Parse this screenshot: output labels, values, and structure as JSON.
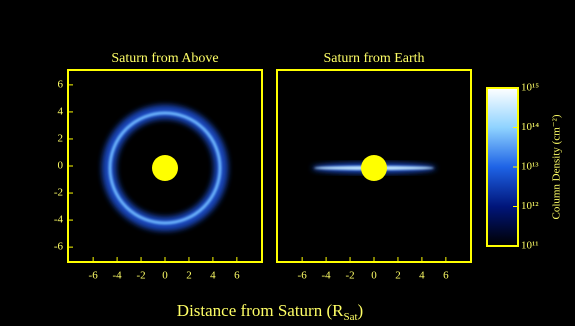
{
  "chart_data": [
    {
      "type": "image",
      "title": "Saturn from Above",
      "xlim": [
        -8.1,
        8.1
      ],
      "ylim": [
        -7.1,
        7.1
      ],
      "xticks": [
        -6,
        -4,
        -2,
        0,
        2,
        4,
        6
      ],
      "yticks": [
        -6,
        -4,
        -2,
        0,
        2,
        4,
        6
      ]
    },
    {
      "type": "image",
      "title": "Saturn from Earth",
      "xlim": [
        -8.1,
        8.1
      ],
      "ylim": [
        -7.1,
        7.1
      ],
      "xticks": [
        -6,
        -4,
        -2,
        0,
        2,
        4,
        6
      ]
    },
    {
      "type": "colorbar",
      "label": "Column Density (cm⁻²)",
      "ylim": [
        100000000000.0,
        1000000000000000.0
      ],
      "log": true,
      "colors": [
        "#000000",
        "#00157a",
        "#1e63e6",
        "#8fd3ff",
        "#ffffff"
      ],
      "yticks": [
        {
          "value": 100000000000.0,
          "label": "10¹¹"
        },
        {
          "value": 1000000000000.0,
          "label": "10¹²"
        },
        {
          "value": 10000000000000.0,
          "label": "10¹³"
        },
        {
          "value": 100000000000000.0,
          "label": "10¹⁴"
        },
        {
          "value": 1000000000000000.0,
          "label": "10¹⁵"
        }
      ]
    }
  ],
  "xlabel": {
    "text": "Distance from Saturn (R",
    "sub": "Sat",
    "end": ")"
  }
}
